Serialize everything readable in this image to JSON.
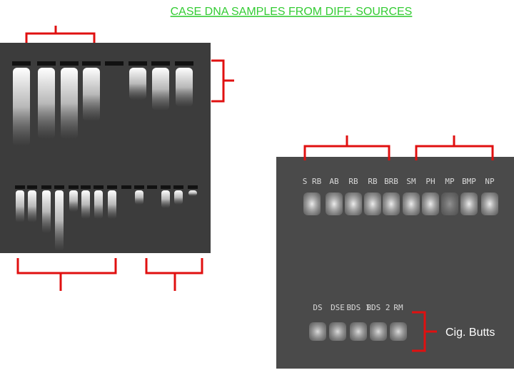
{
  "title": "CASE DNA SAMPLES FROM DIFF. SOURCES",
  "annotation": "Cig. Butts",
  "right_gel": {
    "top_lane_labels": [
      "S RB",
      "AB",
      "RB",
      "RB",
      "BRB",
      "SM",
      "PH",
      "MP",
      "BMP",
      "NP"
    ],
    "bottom_lane_labels": [
      "DS",
      "DSE",
      "BDS 1",
      "BDS 2",
      "RM"
    ]
  }
}
